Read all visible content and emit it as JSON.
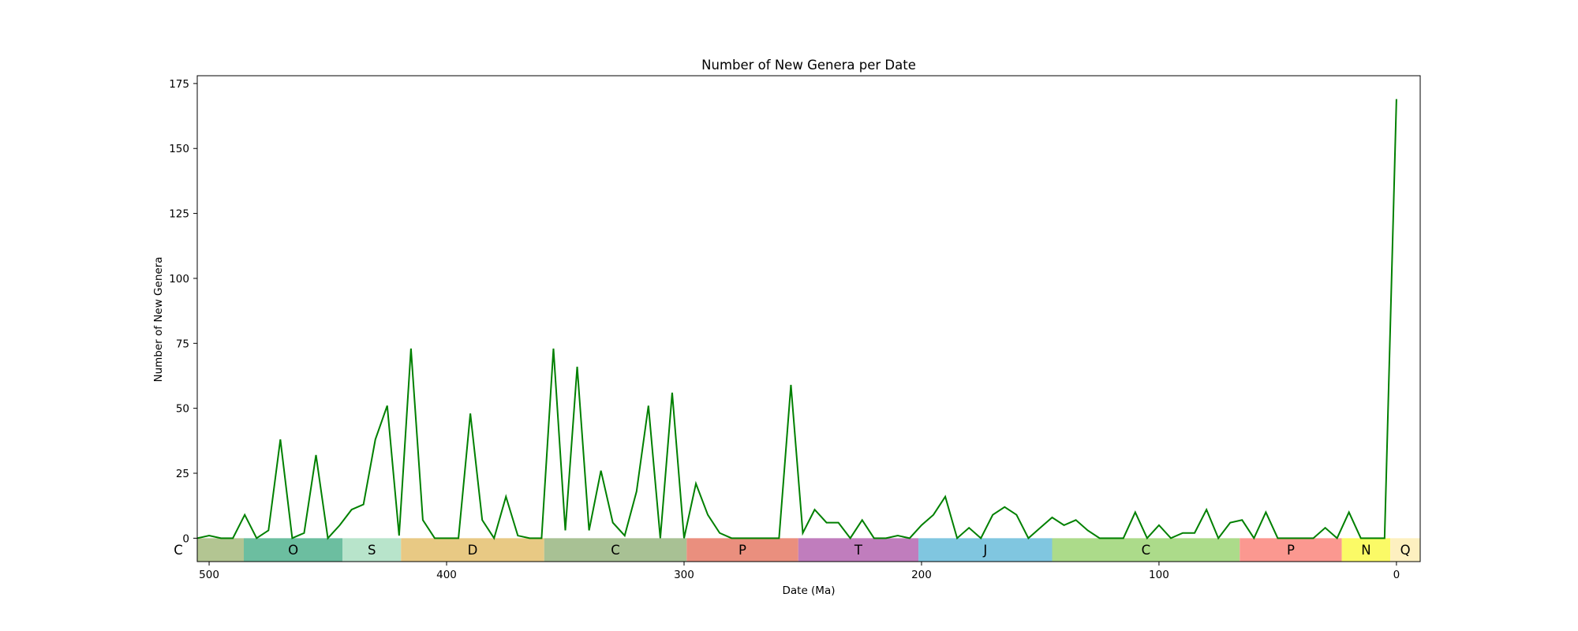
{
  "chart_data": {
    "type": "line",
    "title": "Number of New Genera per Date",
    "xlabel": "Date (Ma)",
    "ylabel": "Number of New Genera",
    "xlim": [
      505,
      -10
    ],
    "ylim": [
      -9,
      178
    ],
    "x_ticks": [
      500,
      400,
      300,
      200,
      100,
      0
    ],
    "y_ticks": [
      0,
      25,
      50,
      75,
      100,
      125,
      150,
      175
    ],
    "grid": false,
    "series": [
      {
        "color": "#008000",
        "x": [
          505,
          500,
          495,
          490,
          485,
          480,
          475,
          470,
          465,
          460,
          455,
          450,
          445,
          440,
          435,
          430,
          425,
          420,
          415,
          410,
          405,
          400,
          395,
          390,
          385,
          380,
          375,
          370,
          365,
          360,
          355,
          350,
          345,
          340,
          335,
          330,
          325,
          320,
          315,
          310,
          305,
          300,
          295,
          290,
          285,
          280,
          275,
          270,
          265,
          260,
          255,
          250,
          245,
          240,
          235,
          230,
          225,
          220,
          215,
          210,
          205,
          200,
          195,
          190,
          185,
          180,
          175,
          170,
          165,
          160,
          155,
          150,
          145,
          140,
          135,
          130,
          125,
          120,
          115,
          110,
          105,
          100,
          95,
          90,
          85,
          80,
          75,
          70,
          65,
          60,
          55,
          50,
          45,
          40,
          35,
          30,
          25,
          20,
          15,
          10,
          5,
          0
        ],
        "y": [
          0,
          1,
          0,
          0,
          9,
          0,
          3,
          38,
          0,
          2,
          32,
          0,
          5,
          11,
          13,
          38,
          51,
          1,
          73,
          7,
          0,
          0,
          0,
          48,
          7,
          0,
          16,
          1,
          0,
          0,
          73,
          3,
          66,
          3,
          26,
          6,
          1,
          18,
          51,
          0,
          56,
          0,
          21,
          9,
          2,
          0,
          0,
          0,
          0,
          0,
          59,
          2,
          11,
          6,
          6,
          0,
          7,
          0,
          0,
          1,
          0,
          5,
          9,
          16,
          0,
          4,
          0,
          9,
          12,
          9,
          0,
          4,
          8,
          5,
          7,
          3,
          0,
          0,
          0,
          10,
          0,
          5,
          0,
          2,
          2,
          11,
          0,
          6,
          7,
          0,
          10,
          0,
          0,
          0,
          0,
          4,
          0,
          10,
          0,
          0,
          0,
          169
        ]
      }
    ],
    "periods": [
      {
        "label": "C",
        "start": 541,
        "end": 485.4,
        "color": "#b3c592"
      },
      {
        "label": "O",
        "start": 485.4,
        "end": 443.8,
        "color": "#6cbea0"
      },
      {
        "label": "S",
        "start": 443.8,
        "end": 419.2,
        "color": "#b8e4cb"
      },
      {
        "label": "D",
        "start": 419.2,
        "end": 358.9,
        "color": "#e8c984"
      },
      {
        "label": "C",
        "start": 358.9,
        "end": 298.9,
        "color": "#a8c194"
      },
      {
        "label": "P",
        "start": 298.9,
        "end": 251.9,
        "color": "#ea8f7e"
      },
      {
        "label": "T",
        "start": 251.9,
        "end": 201.3,
        "color": "#c07dbd"
      },
      {
        "label": "J",
        "start": 201.3,
        "end": 145,
        "color": "#80c6e0"
      },
      {
        "label": "C",
        "start": 145,
        "end": 66,
        "color": "#acdb8a"
      },
      {
        "label": "P",
        "start": 66,
        "end": 23.03,
        "color": "#fb9890"
      },
      {
        "label": "N",
        "start": 23.03,
        "end": 2.58,
        "color": "#fbfa66"
      },
      {
        "label": "Q",
        "start": 2.58,
        "end": -10,
        "color": "#fdf0c0"
      }
    ]
  }
}
